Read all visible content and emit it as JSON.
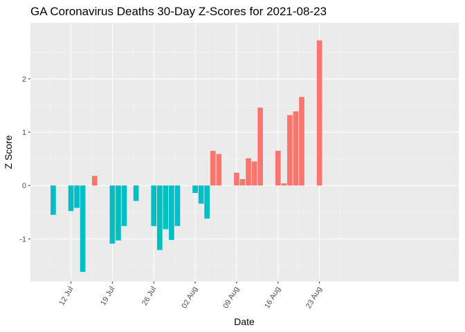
{
  "chart_data": {
    "type": "bar",
    "title": "GA Coronavirus Deaths 30-Day Z-Scores for 2021-08-23",
    "xlabel": "Date",
    "ylabel": "Z Score",
    "ylim": [
      -1.8,
      3.05
    ],
    "x_start_date": "2021-07-07",
    "x_ticks": [
      {
        "label": "12 Jul",
        "day": 5
      },
      {
        "label": "19 Jul",
        "day": 12
      },
      {
        "label": "26 Jul",
        "day": 19
      },
      {
        "label": "02 Aug",
        "day": 26
      },
      {
        "label": "09 Aug",
        "day": 33
      },
      {
        "label": "16 Aug",
        "day": 40
      },
      {
        "label": "23 Aug",
        "day": 47
      }
    ],
    "y_ticks": [
      -1,
      0,
      1,
      2
    ],
    "colors": {
      "positive": "#F8766D",
      "negative": "#00BFC4"
    },
    "categories": [
      "2021-07-09",
      "2021-07-12",
      "2021-07-13",
      "2021-07-14",
      "2021-07-16",
      "2021-07-19",
      "2021-07-20",
      "2021-07-21",
      "2021-07-23",
      "2021-07-26",
      "2021-07-27",
      "2021-07-28",
      "2021-07-29",
      "2021-07-30",
      "2021-08-02",
      "2021-08-03",
      "2021-08-04",
      "2021-08-05",
      "2021-08-06",
      "2021-08-09",
      "2021-08-10",
      "2021-08-11",
      "2021-08-12",
      "2021-08-13",
      "2021-08-16",
      "2021-08-17",
      "2021-08-18",
      "2021-08-19",
      "2021-08-20",
      "2021-08-23"
    ],
    "day_index": [
      2,
      5,
      6,
      7,
      9,
      12,
      13,
      14,
      16,
      19,
      20,
      21,
      22,
      23,
      26,
      27,
      28,
      29,
      30,
      33,
      34,
      35,
      36,
      37,
      40,
      41,
      42,
      43,
      44,
      47
    ],
    "values": [
      -0.55,
      -0.48,
      -0.42,
      -1.62,
      0.18,
      -1.09,
      -1.03,
      -0.76,
      -0.29,
      -0.76,
      -1.21,
      -0.82,
      -1.02,
      -0.76,
      -0.14,
      -0.34,
      -0.62,
      0.65,
      0.59,
      0.24,
      0.12,
      0.51,
      0.45,
      1.46,
      0.65,
      0.04,
      1.32,
      1.39,
      1.66,
      2.72
    ]
  }
}
